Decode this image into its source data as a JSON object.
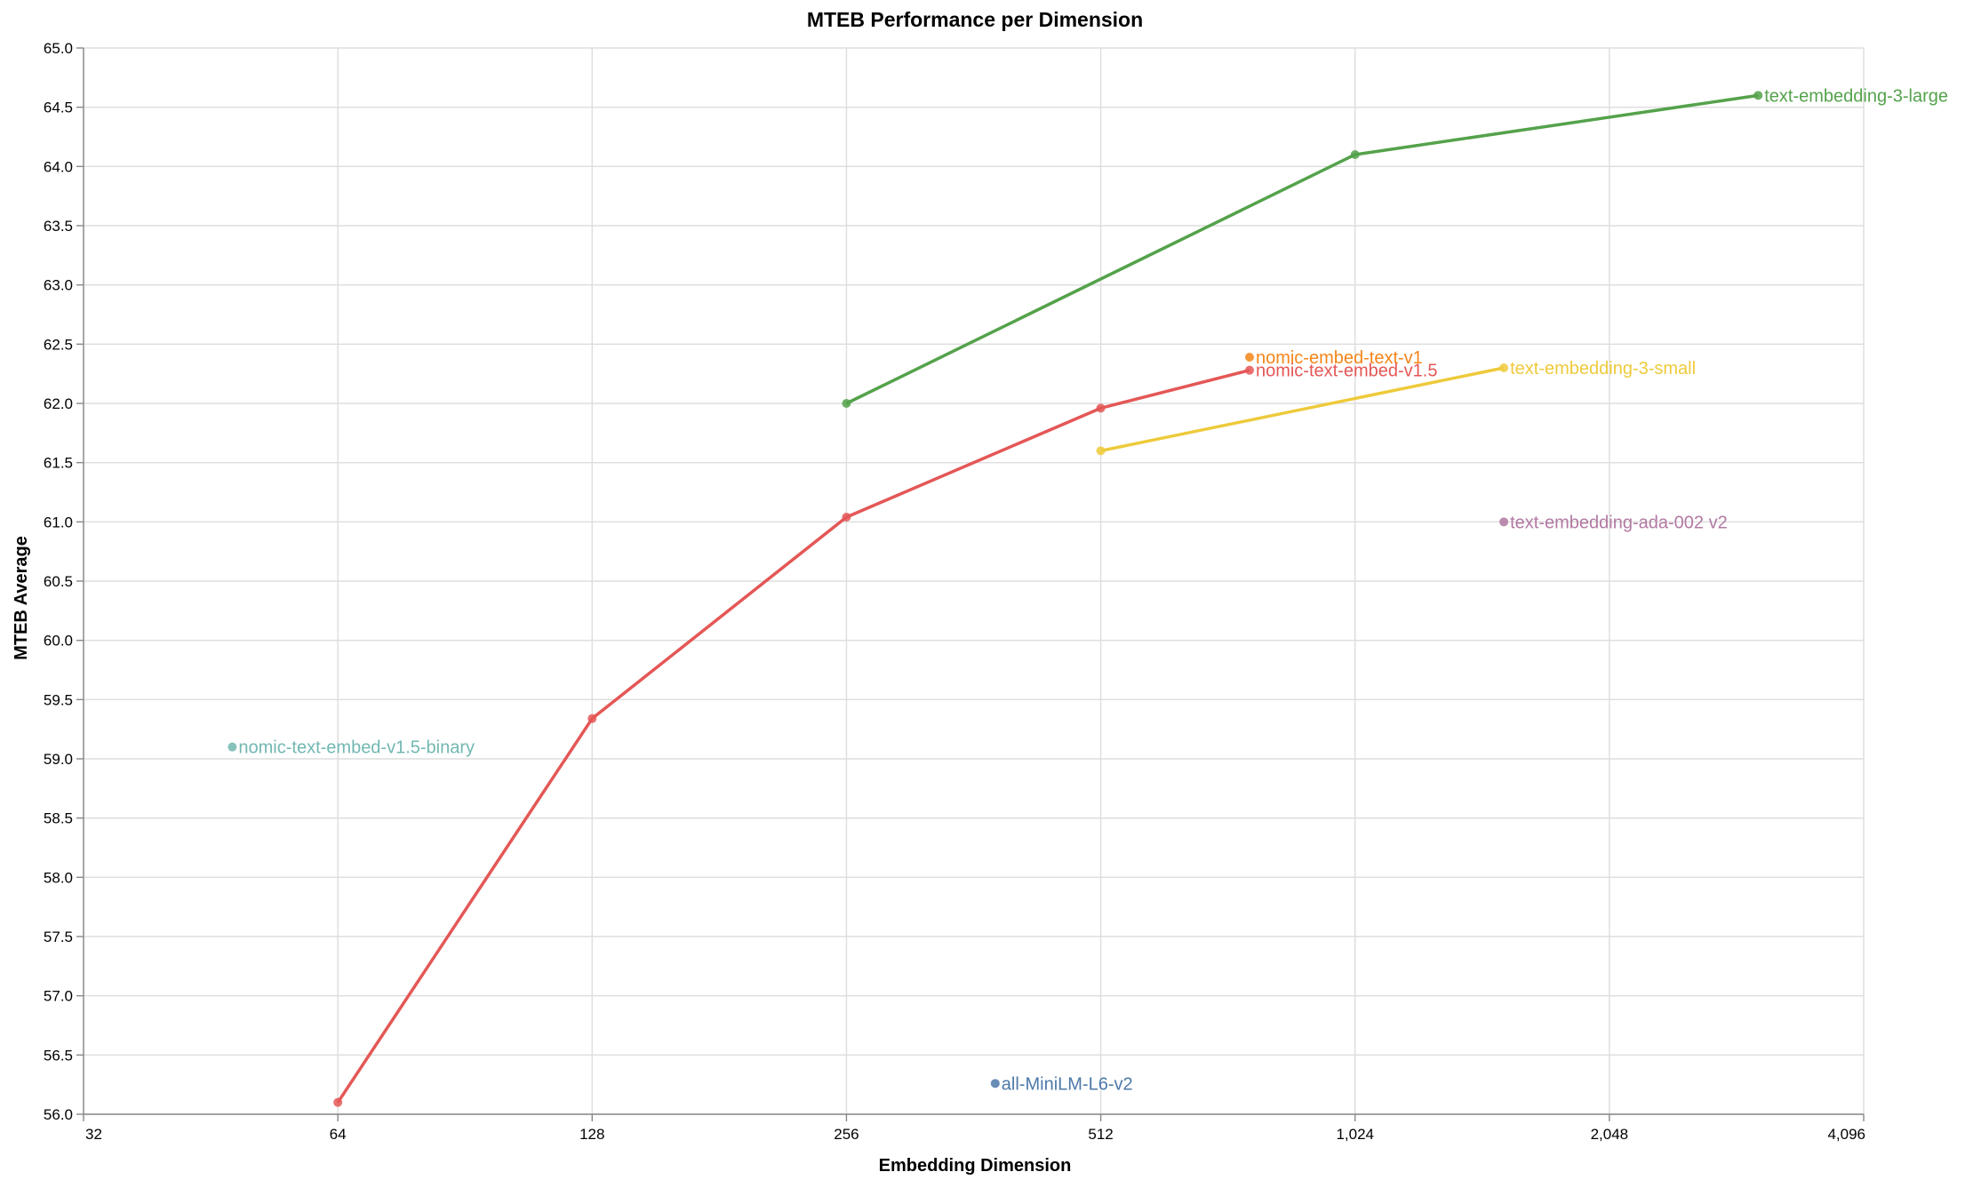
{
  "chart_data": {
    "type": "line",
    "title": "MTEB Performance per Dimension",
    "xlabel": "Embedding Dimension",
    "ylabel": "MTEB Average",
    "x_scale": "log2",
    "xlim": [
      32,
      4096
    ],
    "ylim": [
      56.0,
      65.0
    ],
    "x_ticks": [
      32,
      64,
      128,
      256,
      512,
      1024,
      2048,
      4096
    ],
    "x_tick_labels": [
      "32",
      "64",
      "128",
      "256",
      "512",
      "1,024",
      "2,048",
      "4,096"
    ],
    "y_ticks": [
      56.0,
      56.5,
      57.0,
      57.5,
      58.0,
      58.5,
      59.0,
      59.5,
      60.0,
      60.5,
      61.0,
      61.5,
      62.0,
      62.5,
      63.0,
      63.5,
      64.0,
      64.5,
      65.0
    ],
    "grid": true,
    "legend": "direct labels at last point of each series",
    "series": [
      {
        "name": "text-embedding-3-large",
        "color": "#54a24b",
        "x": [
          256,
          1024,
          3072
        ],
        "y": [
          62.0,
          64.1,
          64.6
        ]
      },
      {
        "name": "nomic-embed-text-v1",
        "color": "#f58518",
        "x": [
          768
        ],
        "y": [
          62.39
        ]
      },
      {
        "name": "nomic-text-embed-v1.5",
        "color": "#e45756",
        "x": [
          64,
          128,
          256,
          512,
          768
        ],
        "y": [
          56.1,
          59.34,
          61.04,
          61.96,
          62.28
        ]
      },
      {
        "name": "text-embedding-3-small",
        "color": "#eeca3b",
        "x": [
          512,
          1536
        ],
        "y": [
          61.6,
          62.3
        ]
      },
      {
        "name": "text-embedding-ada-002 v2",
        "color": "#b279a2",
        "x": [
          1536
        ],
        "y": [
          61.0
        ]
      },
      {
        "name": "nomic-text-embed-v1.5-binary",
        "color": "#72b7b2",
        "x": [
          48
        ],
        "y": [
          59.1
        ]
      },
      {
        "name": "all-MiniLM-L6-v2",
        "color": "#4c78a8",
        "x": [
          384
        ],
        "y": [
          56.26
        ]
      }
    ]
  }
}
